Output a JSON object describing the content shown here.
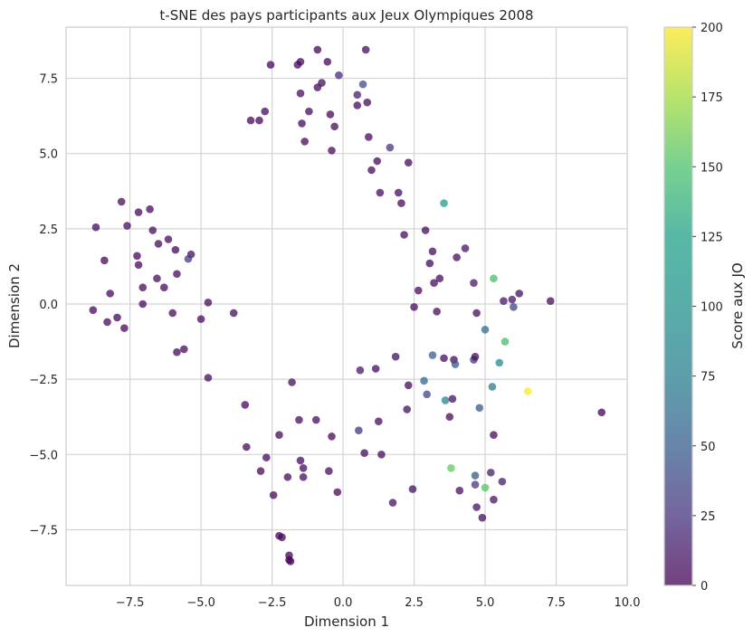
{
  "chart_data": {
    "type": "scatter",
    "title": "t-SNE des pays participants aux Jeux Olympiques 2008",
    "xlabel": "Dimension 1",
    "ylabel": "Dimension 2",
    "xlim": [
      -9.75,
      10.0
    ],
    "ylim": [
      -9.35,
      9.2
    ],
    "xticks": [
      -7.5,
      -5.0,
      -2.5,
      0.0,
      2.5,
      5.0,
      7.5,
      10.0
    ],
    "xtick_labels": [
      "−7.5",
      "−5.0",
      "−2.5",
      "0.0",
      "2.5",
      "5.0",
      "7.5",
      "10.0"
    ],
    "yticks": [
      -7.5,
      -5.0,
      -2.5,
      0.0,
      2.5,
      5.0,
      7.5
    ],
    "ytick_labels": [
      "−7.5",
      "−5.0",
      "−2.5",
      "0.0",
      "2.5",
      "5.0",
      "7.5"
    ],
    "grid": true,
    "colormap": "viridis",
    "colorbar": {
      "label": "Score aux JO",
      "range": [
        0,
        200
      ],
      "ticks": [
        0,
        25,
        50,
        75,
        100,
        125,
        150,
        175,
        200
      ],
      "tick_labels": [
        "0",
        "25",
        "50",
        "75",
        "100",
        "125",
        "150",
        "175",
        "200"
      ]
    },
    "points": [
      {
        "x": 0.8,
        "y": 8.45,
        "c": 5
      },
      {
        "x": -0.9,
        "y": 8.45,
        "c": 3
      },
      {
        "x": -1.5,
        "y": 8.05,
        "c": 4
      },
      {
        "x": -0.55,
        "y": 8.05,
        "c": 4
      },
      {
        "x": -1.6,
        "y": 7.95,
        "c": 5
      },
      {
        "x": -2.55,
        "y": 7.95,
        "c": 3
      },
      {
        "x": -0.15,
        "y": 7.6,
        "c": 22
      },
      {
        "x": 0.7,
        "y": 7.3,
        "c": 45
      },
      {
        "x": -0.75,
        "y": 7.35,
        "c": 5
      },
      {
        "x": -0.9,
        "y": 7.2,
        "c": 4
      },
      {
        "x": -1.5,
        "y": 7.0,
        "c": 6
      },
      {
        "x": 0.5,
        "y": 6.95,
        "c": 15
      },
      {
        "x": 0.85,
        "y": 6.7,
        "c": 5
      },
      {
        "x": 0.5,
        "y": 6.6,
        "c": 5
      },
      {
        "x": -2.75,
        "y": 6.4,
        "c": 4
      },
      {
        "x": -1.2,
        "y": 6.4,
        "c": 5
      },
      {
        "x": -0.45,
        "y": 6.3,
        "c": 4
      },
      {
        "x": -3.25,
        "y": 6.1,
        "c": 3
      },
      {
        "x": -2.95,
        "y": 6.1,
        "c": 3
      },
      {
        "x": -1.45,
        "y": 6.0,
        "c": 4
      },
      {
        "x": -0.3,
        "y": 5.9,
        "c": 5
      },
      {
        "x": 0.9,
        "y": 5.55,
        "c": 5
      },
      {
        "x": -1.35,
        "y": 5.4,
        "c": 4
      },
      {
        "x": 1.65,
        "y": 5.2,
        "c": 30
      },
      {
        "x": -0.4,
        "y": 5.1,
        "c": 4
      },
      {
        "x": 1.2,
        "y": 4.75,
        "c": 5
      },
      {
        "x": 2.3,
        "y": 4.7,
        "c": 5
      },
      {
        "x": 1.0,
        "y": 4.45,
        "c": 5
      },
      {
        "x": 1.3,
        "y": 3.7,
        "c": 5
      },
      {
        "x": 1.95,
        "y": 3.7,
        "c": 8
      },
      {
        "x": 2.05,
        "y": 3.35,
        "c": 5
      },
      {
        "x": 3.55,
        "y": 3.35,
        "c": 110
      },
      {
        "x": 2.15,
        "y": 2.3,
        "c": 8
      },
      {
        "x": 2.9,
        "y": 2.45,
        "c": 5
      },
      {
        "x": 3.15,
        "y": 1.75,
        "c": 5
      },
      {
        "x": 4.0,
        "y": 1.55,
        "c": 5
      },
      {
        "x": 4.3,
        "y": 1.85,
        "c": 10
      },
      {
        "x": 3.05,
        "y": 1.35,
        "c": 5
      },
      {
        "x": 3.4,
        "y": 0.85,
        "c": 6
      },
      {
        "x": 3.2,
        "y": 0.7,
        "c": 5
      },
      {
        "x": 4.6,
        "y": 0.7,
        "c": 12
      },
      {
        "x": 2.65,
        "y": 0.45,
        "c": 5
      },
      {
        "x": 5.3,
        "y": 0.85,
        "c": 140
      },
      {
        "x": 5.65,
        "y": 0.1,
        "c": 12
      },
      {
        "x": 5.95,
        "y": 0.15,
        "c": 12
      },
      {
        "x": 6.2,
        "y": 0.35,
        "c": 8
      },
      {
        "x": 7.3,
        "y": 0.1,
        "c": 5
      },
      {
        "x": 6.0,
        "y": -0.1,
        "c": 40
      },
      {
        "x": 2.5,
        "y": -0.1,
        "c": 5
      },
      {
        "x": 3.3,
        "y": -0.25,
        "c": 6
      },
      {
        "x": 4.7,
        "y": -0.3,
        "c": 5
      },
      {
        "x": 5.0,
        "y": -0.85,
        "c": 70
      },
      {
        "x": 5.7,
        "y": -1.25,
        "c": 140
      },
      {
        "x": 3.15,
        "y": -1.7,
        "c": 60
      },
      {
        "x": 3.55,
        "y": -1.8,
        "c": 6
      },
      {
        "x": 3.9,
        "y": -1.85,
        "c": 6
      },
      {
        "x": 4.6,
        "y": -1.85,
        "c": 30
      },
      {
        "x": 4.65,
        "y": -1.75,
        "c": 5
      },
      {
        "x": 5.5,
        "y": -1.95,
        "c": 95
      },
      {
        "x": 3.95,
        "y": -2.0,
        "c": 55
      },
      {
        "x": 1.85,
        "y": -1.75,
        "c": 8
      },
      {
        "x": 1.15,
        "y": -2.15,
        "c": 5
      },
      {
        "x": 0.6,
        "y": -2.2,
        "c": 12
      },
      {
        "x": 2.85,
        "y": -2.55,
        "c": 65
      },
      {
        "x": 2.3,
        "y": -2.7,
        "c": 5
      },
      {
        "x": 5.25,
        "y": -2.75,
        "c": 85
      },
      {
        "x": 6.5,
        "y": -2.9,
        "c": 200
      },
      {
        "x": 2.95,
        "y": -3.0,
        "c": 40
      },
      {
        "x": 3.6,
        "y": -3.2,
        "c": 90
      },
      {
        "x": 3.85,
        "y": -3.15,
        "c": 8
      },
      {
        "x": 4.8,
        "y": -3.45,
        "c": 55
      },
      {
        "x": 2.25,
        "y": -3.5,
        "c": 8
      },
      {
        "x": 3.75,
        "y": -3.75,
        "c": 5
      },
      {
        "x": 9.1,
        "y": -3.6,
        "c": 0
      },
      {
        "x": 1.25,
        "y": -3.9,
        "c": 5
      },
      {
        "x": 0.55,
        "y": -4.2,
        "c": 30
      },
      {
        "x": 5.3,
        "y": -4.35,
        "c": 5
      },
      {
        "x": 0.75,
        "y": -4.95,
        "c": 5
      },
      {
        "x": 1.35,
        "y": -5.0,
        "c": 5
      },
      {
        "x": 3.8,
        "y": -5.45,
        "c": 150
      },
      {
        "x": 4.65,
        "y": -5.7,
        "c": 55
      },
      {
        "x": 5.2,
        "y": -5.6,
        "c": 15
      },
      {
        "x": 5.6,
        "y": -5.9,
        "c": 15
      },
      {
        "x": 4.65,
        "y": -6.0,
        "c": 30
      },
      {
        "x": 5.0,
        "y": -6.1,
        "c": 145
      },
      {
        "x": 4.1,
        "y": -6.2,
        "c": 8
      },
      {
        "x": 2.45,
        "y": -6.15,
        "c": 8
      },
      {
        "x": 5.3,
        "y": -6.5,
        "c": 10
      },
      {
        "x": 1.75,
        "y": -6.6,
        "c": 8
      },
      {
        "x": 4.7,
        "y": -6.75,
        "c": 8
      },
      {
        "x": 4.9,
        "y": -7.1,
        "c": 5
      },
      {
        "x": -7.8,
        "y": 3.4,
        "c": 5
      },
      {
        "x": -6.8,
        "y": 3.15,
        "c": 4
      },
      {
        "x": -7.2,
        "y": 3.05,
        "c": 4
      },
      {
        "x": -8.7,
        "y": 2.55,
        "c": 4
      },
      {
        "x": -7.6,
        "y": 2.6,
        "c": 4
      },
      {
        "x": -6.7,
        "y": 2.45,
        "c": 5
      },
      {
        "x": -6.15,
        "y": 2.15,
        "c": 5
      },
      {
        "x": -6.5,
        "y": 2.0,
        "c": 5
      },
      {
        "x": -5.9,
        "y": 1.8,
        "c": 4
      },
      {
        "x": -5.35,
        "y": 1.65,
        "c": 8
      },
      {
        "x": -5.45,
        "y": 1.5,
        "c": 35
      },
      {
        "x": -7.25,
        "y": 1.6,
        "c": 4
      },
      {
        "x": -8.4,
        "y": 1.45,
        "c": 3
      },
      {
        "x": -7.2,
        "y": 1.3,
        "c": 4
      },
      {
        "x": -5.85,
        "y": 1.0,
        "c": 5
      },
      {
        "x": -6.55,
        "y": 0.85,
        "c": 6
      },
      {
        "x": -7.05,
        "y": 0.55,
        "c": 5
      },
      {
        "x": -6.3,
        "y": 0.55,
        "c": 4
      },
      {
        "x": -8.2,
        "y": 0.35,
        "c": 4
      },
      {
        "x": -4.75,
        "y": 0.05,
        "c": 5
      },
      {
        "x": -7.05,
        "y": 0.0,
        "c": 4
      },
      {
        "x": -8.8,
        "y": -0.2,
        "c": 4
      },
      {
        "x": -6.0,
        "y": -0.3,
        "c": 5
      },
      {
        "x": -3.85,
        "y": -0.3,
        "c": 5
      },
      {
        "x": -7.95,
        "y": -0.45,
        "c": 4
      },
      {
        "x": -5.0,
        "y": -0.5,
        "c": 5
      },
      {
        "x": -8.3,
        "y": -0.6,
        "c": 4
      },
      {
        "x": -7.7,
        "y": -0.8,
        "c": 4
      },
      {
        "x": -5.6,
        "y": -1.5,
        "c": 5
      },
      {
        "x": -5.85,
        "y": -1.6,
        "c": 5
      },
      {
        "x": -4.75,
        "y": -2.45,
        "c": 5
      },
      {
        "x": -1.8,
        "y": -2.6,
        "c": 5
      },
      {
        "x": -3.45,
        "y": -3.35,
        "c": 4
      },
      {
        "x": -1.55,
        "y": -3.85,
        "c": 5
      },
      {
        "x": -0.95,
        "y": -3.85,
        "c": 5
      },
      {
        "x": -2.25,
        "y": -4.35,
        "c": 4
      },
      {
        "x": -0.4,
        "y": -4.4,
        "c": 4
      },
      {
        "x": -3.4,
        "y": -4.75,
        "c": 4
      },
      {
        "x": -2.7,
        "y": -5.1,
        "c": 4
      },
      {
        "x": -1.5,
        "y": -5.2,
        "c": 5
      },
      {
        "x": -1.4,
        "y": -5.45,
        "c": 5
      },
      {
        "x": -0.5,
        "y": -5.55,
        "c": 5
      },
      {
        "x": -2.9,
        "y": -5.55,
        "c": 4
      },
      {
        "x": -1.4,
        "y": -5.75,
        "c": 5
      },
      {
        "x": -1.95,
        "y": -5.75,
        "c": 5
      },
      {
        "x": -0.2,
        "y": -6.25,
        "c": 5
      },
      {
        "x": -2.45,
        "y": -6.35,
        "c": 5
      },
      {
        "x": -2.25,
        "y": -7.7,
        "c": 3
      },
      {
        "x": -2.15,
        "y": -7.75,
        "c": 4
      },
      {
        "x": -1.9,
        "y": -8.35,
        "c": 3
      },
      {
        "x": -1.85,
        "y": -8.55,
        "c": 0
      },
      {
        "x": -1.9,
        "y": -8.5,
        "c": 2
      }
    ]
  }
}
